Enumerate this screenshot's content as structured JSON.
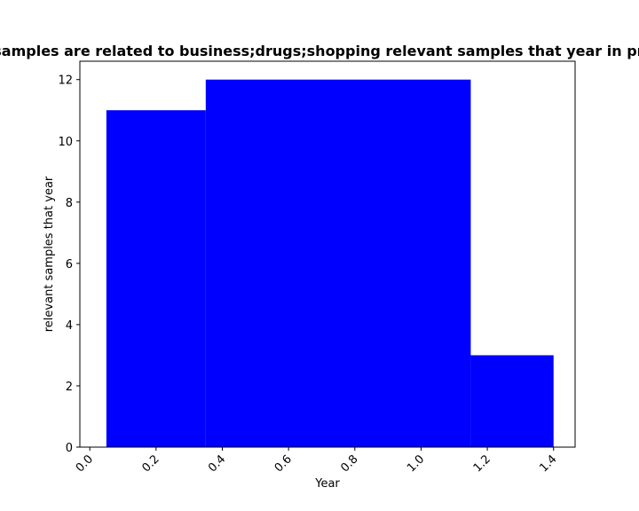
{
  "chart_data": {
    "type": "bar",
    "title": "Number of samples are related to business;drugs;shopping relevant samples that year in privacy policies",
    "xlabel": "Year",
    "ylabel": "relevant samples that year",
    "xlim": [
      -0.03,
      1.465
    ],
    "ylim": [
      0,
      12.6
    ],
    "x_ticks": [
      0.0,
      0.2,
      0.4,
      0.6,
      0.8,
      1.0,
      1.2,
      1.4
    ],
    "x_tick_labels": [
      "0.0",
      "0.2",
      "0.4",
      "0.6",
      "0.8",
      "1.0",
      "1.2",
      "1.4"
    ],
    "y_ticks": [
      0,
      2,
      4,
      6,
      8,
      10,
      12
    ],
    "y_tick_labels": [
      "0",
      "2",
      "4",
      "6",
      "8",
      "10",
      "12"
    ],
    "grid": false,
    "bars": [
      {
        "x_start": 0.05,
        "x_end": 0.35,
        "value": 11
      },
      {
        "x_start": 0.35,
        "x_end": 1.15,
        "value": 12
      },
      {
        "x_start": 1.15,
        "x_end": 1.4,
        "value": 3
      }
    ],
    "bar_color": "#0000ff"
  }
}
